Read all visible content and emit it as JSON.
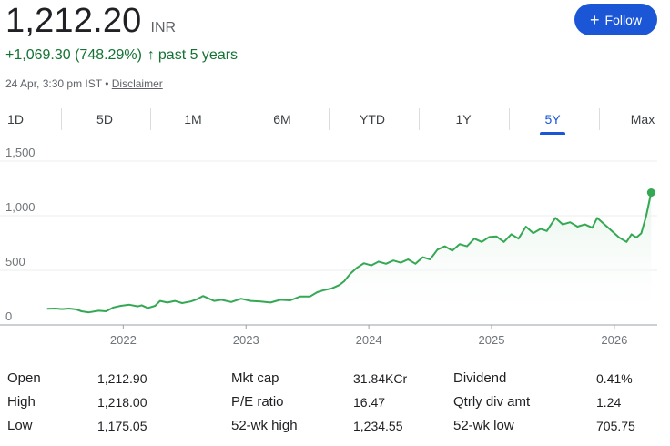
{
  "quote": {
    "price": "1,212.20",
    "currency": "INR",
    "change": "+1,069.30 (748.29%)",
    "change_arrow": "↑",
    "period": "past 5 years",
    "timestamp": "24 Apr, 3:30 pm IST",
    "separator": "•",
    "disclaimer": "Disclaimer"
  },
  "follow_button": {
    "label": "Follow",
    "icon": "plus-icon",
    "color": "#1a56d6"
  },
  "tabs": [
    {
      "label": "1D",
      "active": false
    },
    {
      "label": "5D",
      "active": false
    },
    {
      "label": "1M",
      "active": false
    },
    {
      "label": "6M",
      "active": false
    },
    {
      "label": "YTD",
      "active": false
    },
    {
      "label": "1Y",
      "active": false
    },
    {
      "label": "5Y",
      "active": true
    },
    {
      "label": "Max",
      "active": false
    }
  ],
  "chart_data": {
    "type": "area",
    "ylim": [
      0,
      1500
    ],
    "yticks": [
      0,
      500,
      1000,
      1500
    ],
    "ytick_labels": [
      "0",
      "500",
      "1,000",
      "1,500"
    ],
    "xticks": [
      2022,
      2023,
      2024,
      2025,
      2026
    ],
    "xtick_labels": [
      "2022",
      "2023",
      "2024",
      "2025",
      "2026"
    ],
    "xlim": [
      2021.33,
      2026.32
    ],
    "line_color": "#34a853",
    "fill_color": "#e6f4ea",
    "grid": true,
    "series": [
      {
        "x": [
          2021.38,
          2021.45,
          2021.5,
          2021.56,
          2021.62,
          2021.66,
          2021.72,
          2021.8,
          2021.86,
          2021.92,
          2021.98,
          2022.05,
          2022.12,
          2022.15,
          2022.2,
          2022.26,
          2022.3,
          2022.36,
          2022.42,
          2022.48,
          2022.55,
          2022.6,
          2022.65,
          2022.7,
          2022.74,
          2022.8,
          2022.88,
          2022.96,
          2023.04,
          2023.12,
          2023.2,
          2023.28,
          2023.36,
          2023.44,
          2023.52,
          2023.58,
          2023.64,
          2023.7,
          2023.76,
          2023.8,
          2023.85,
          2023.9,
          2023.96,
          2024.02,
          2024.08,
          2024.14,
          2024.2,
          2024.26,
          2024.32,
          2024.38,
          2024.44,
          2024.5,
          2024.56,
          2024.62,
          2024.68,
          2024.74,
          2024.8,
          2024.86,
          2024.92,
          2024.98,
          2025.04,
          2025.1,
          2025.16,
          2025.22,
          2025.28,
          2025.34,
          2025.4,
          2025.45,
          2025.52,
          2025.58,
          2025.64,
          2025.7,
          2025.76,
          2025.82,
          2025.86,
          2025.92,
          2025.98,
          2026.04,
          2026.1,
          2026.14,
          2026.18,
          2026.22,
          2026.26,
          2026.3
        ],
        "y": [
          148,
          150,
          145,
          150,
          142,
          125,
          115,
          130,
          125,
          160,
          175,
          185,
          170,
          180,
          155,
          175,
          220,
          205,
          220,
          200,
          215,
          235,
          265,
          240,
          220,
          230,
          210,
          240,
          220,
          215,
          205,
          230,
          225,
          260,
          260,
          300,
          320,
          335,
          365,
          400,
          470,
          520,
          565,
          545,
          580,
          560,
          590,
          570,
          600,
          560,
          620,
          600,
          690,
          720,
          680,
          740,
          720,
          790,
          760,
          805,
          810,
          760,
          830,
          790,
          900,
          840,
          880,
          860,
          980,
          920,
          940,
          900,
          920,
          890,
          980,
          920,
          860,
          800,
          760,
          830,
          800,
          840,
          1000,
          1212.2
        ]
      }
    ]
  },
  "stats": [
    [
      {
        "label": "Open",
        "value": "1,212.90"
      },
      {
        "label": "High",
        "value": "1,218.00"
      },
      {
        "label": "Low",
        "value": "1,175.05"
      }
    ],
    [
      {
        "label": "Mkt cap",
        "value": "31.84KCr"
      },
      {
        "label": "P/E ratio",
        "value": "16.47"
      },
      {
        "label": "52-wk high",
        "value": "1,234.55"
      }
    ],
    [
      {
        "label": "Dividend",
        "value": "0.41%"
      },
      {
        "label": "Qtrly div amt",
        "value": "1.24"
      },
      {
        "label": "52-wk low",
        "value": "705.75"
      }
    ]
  ]
}
